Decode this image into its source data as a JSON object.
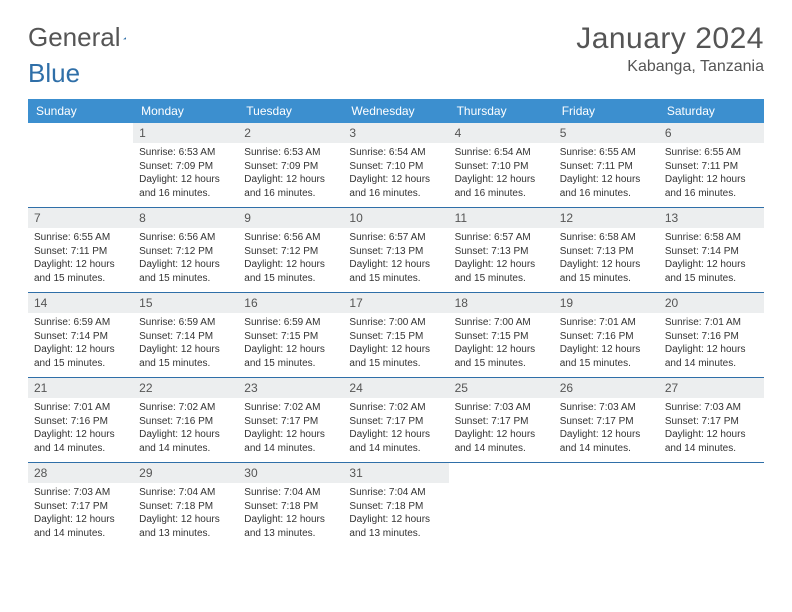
{
  "brand": {
    "part1": "General",
    "part2": "Blue"
  },
  "title": "January 2024",
  "location": "Kabanga, Tanzania",
  "colors": {
    "header_bg": "#3c8fcf",
    "rule": "#2f6fa8",
    "daynum_bg": "#eceeef",
    "text": "#333333",
    "muted": "#555555"
  },
  "weekdays": [
    "Sunday",
    "Monday",
    "Tuesday",
    "Wednesday",
    "Thursday",
    "Friday",
    "Saturday"
  ],
  "weeks": [
    [
      {
        "n": "",
        "sr": "",
        "ss": "",
        "dl": ""
      },
      {
        "n": "1",
        "sr": "Sunrise: 6:53 AM",
        "ss": "Sunset: 7:09 PM",
        "dl": "Daylight: 12 hours and 16 minutes."
      },
      {
        "n": "2",
        "sr": "Sunrise: 6:53 AM",
        "ss": "Sunset: 7:09 PM",
        "dl": "Daylight: 12 hours and 16 minutes."
      },
      {
        "n": "3",
        "sr": "Sunrise: 6:54 AM",
        "ss": "Sunset: 7:10 PM",
        "dl": "Daylight: 12 hours and 16 minutes."
      },
      {
        "n": "4",
        "sr": "Sunrise: 6:54 AM",
        "ss": "Sunset: 7:10 PM",
        "dl": "Daylight: 12 hours and 16 minutes."
      },
      {
        "n": "5",
        "sr": "Sunrise: 6:55 AM",
        "ss": "Sunset: 7:11 PM",
        "dl": "Daylight: 12 hours and 16 minutes."
      },
      {
        "n": "6",
        "sr": "Sunrise: 6:55 AM",
        "ss": "Sunset: 7:11 PM",
        "dl": "Daylight: 12 hours and 16 minutes."
      }
    ],
    [
      {
        "n": "7",
        "sr": "Sunrise: 6:55 AM",
        "ss": "Sunset: 7:11 PM",
        "dl": "Daylight: 12 hours and 15 minutes."
      },
      {
        "n": "8",
        "sr": "Sunrise: 6:56 AM",
        "ss": "Sunset: 7:12 PM",
        "dl": "Daylight: 12 hours and 15 minutes."
      },
      {
        "n": "9",
        "sr": "Sunrise: 6:56 AM",
        "ss": "Sunset: 7:12 PM",
        "dl": "Daylight: 12 hours and 15 minutes."
      },
      {
        "n": "10",
        "sr": "Sunrise: 6:57 AM",
        "ss": "Sunset: 7:13 PM",
        "dl": "Daylight: 12 hours and 15 minutes."
      },
      {
        "n": "11",
        "sr": "Sunrise: 6:57 AM",
        "ss": "Sunset: 7:13 PM",
        "dl": "Daylight: 12 hours and 15 minutes."
      },
      {
        "n": "12",
        "sr": "Sunrise: 6:58 AM",
        "ss": "Sunset: 7:13 PM",
        "dl": "Daylight: 12 hours and 15 minutes."
      },
      {
        "n": "13",
        "sr": "Sunrise: 6:58 AM",
        "ss": "Sunset: 7:14 PM",
        "dl": "Daylight: 12 hours and 15 minutes."
      }
    ],
    [
      {
        "n": "14",
        "sr": "Sunrise: 6:59 AM",
        "ss": "Sunset: 7:14 PM",
        "dl": "Daylight: 12 hours and 15 minutes."
      },
      {
        "n": "15",
        "sr": "Sunrise: 6:59 AM",
        "ss": "Sunset: 7:14 PM",
        "dl": "Daylight: 12 hours and 15 minutes."
      },
      {
        "n": "16",
        "sr": "Sunrise: 6:59 AM",
        "ss": "Sunset: 7:15 PM",
        "dl": "Daylight: 12 hours and 15 minutes."
      },
      {
        "n": "17",
        "sr": "Sunrise: 7:00 AM",
        "ss": "Sunset: 7:15 PM",
        "dl": "Daylight: 12 hours and 15 minutes."
      },
      {
        "n": "18",
        "sr": "Sunrise: 7:00 AM",
        "ss": "Sunset: 7:15 PM",
        "dl": "Daylight: 12 hours and 15 minutes."
      },
      {
        "n": "19",
        "sr": "Sunrise: 7:01 AM",
        "ss": "Sunset: 7:16 PM",
        "dl": "Daylight: 12 hours and 15 minutes."
      },
      {
        "n": "20",
        "sr": "Sunrise: 7:01 AM",
        "ss": "Sunset: 7:16 PM",
        "dl": "Daylight: 12 hours and 14 minutes."
      }
    ],
    [
      {
        "n": "21",
        "sr": "Sunrise: 7:01 AM",
        "ss": "Sunset: 7:16 PM",
        "dl": "Daylight: 12 hours and 14 minutes."
      },
      {
        "n": "22",
        "sr": "Sunrise: 7:02 AM",
        "ss": "Sunset: 7:16 PM",
        "dl": "Daylight: 12 hours and 14 minutes."
      },
      {
        "n": "23",
        "sr": "Sunrise: 7:02 AM",
        "ss": "Sunset: 7:17 PM",
        "dl": "Daylight: 12 hours and 14 minutes."
      },
      {
        "n": "24",
        "sr": "Sunrise: 7:02 AM",
        "ss": "Sunset: 7:17 PM",
        "dl": "Daylight: 12 hours and 14 minutes."
      },
      {
        "n": "25",
        "sr": "Sunrise: 7:03 AM",
        "ss": "Sunset: 7:17 PM",
        "dl": "Daylight: 12 hours and 14 minutes."
      },
      {
        "n": "26",
        "sr": "Sunrise: 7:03 AM",
        "ss": "Sunset: 7:17 PM",
        "dl": "Daylight: 12 hours and 14 minutes."
      },
      {
        "n": "27",
        "sr": "Sunrise: 7:03 AM",
        "ss": "Sunset: 7:17 PM",
        "dl": "Daylight: 12 hours and 14 minutes."
      }
    ],
    [
      {
        "n": "28",
        "sr": "Sunrise: 7:03 AM",
        "ss": "Sunset: 7:17 PM",
        "dl": "Daylight: 12 hours and 14 minutes."
      },
      {
        "n": "29",
        "sr": "Sunrise: 7:04 AM",
        "ss": "Sunset: 7:18 PM",
        "dl": "Daylight: 12 hours and 13 minutes."
      },
      {
        "n": "30",
        "sr": "Sunrise: 7:04 AM",
        "ss": "Sunset: 7:18 PM",
        "dl": "Daylight: 12 hours and 13 minutes."
      },
      {
        "n": "31",
        "sr": "Sunrise: 7:04 AM",
        "ss": "Sunset: 7:18 PM",
        "dl": "Daylight: 12 hours and 13 minutes."
      },
      {
        "n": "",
        "sr": "",
        "ss": "",
        "dl": ""
      },
      {
        "n": "",
        "sr": "",
        "ss": "",
        "dl": ""
      },
      {
        "n": "",
        "sr": "",
        "ss": "",
        "dl": ""
      }
    ]
  ]
}
